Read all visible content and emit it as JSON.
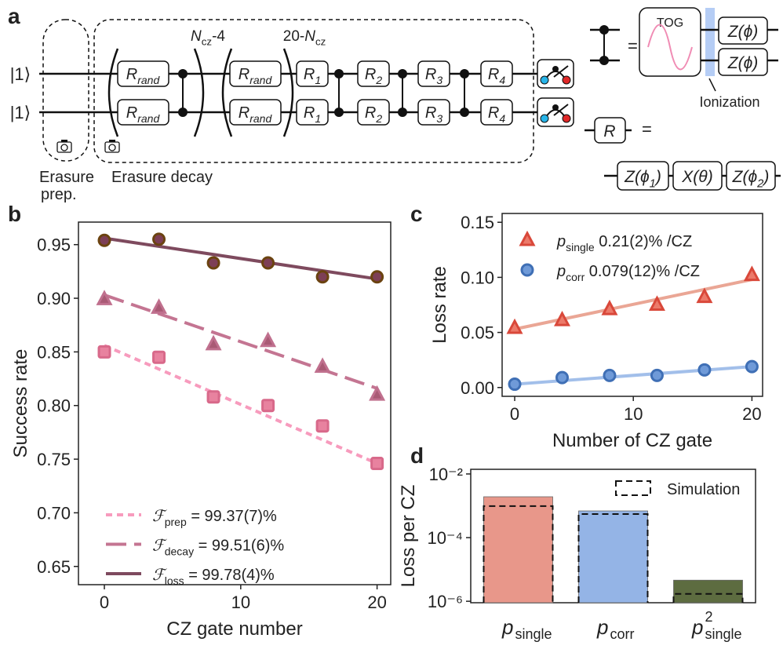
{
  "diagram": {
    "label": "a",
    "inputs": [
      "|1⟩",
      "|1⟩"
    ],
    "r_rand": {
      "base": "R",
      "sub": "rand"
    },
    "rep1": {
      "base": "N",
      "sub": "cz",
      "rest": "-4"
    },
    "rep2": {
      "pre": "20-",
      "base": "N",
      "sub": "cz"
    },
    "r_gates": [
      {
        "base": "R",
        "sub": "1"
      },
      {
        "base": "R",
        "sub": "2"
      },
      {
        "base": "R",
        "sub": "3"
      },
      {
        "base": "R",
        "sub": "4"
      }
    ],
    "equals": "=",
    "tog": "TOG",
    "z_phi": "Z(ϕ)",
    "ionization": "Ionization",
    "r": "R",
    "decomp": [
      {
        "base": "Z(ϕ",
        "sub": "1",
        "rest": ")"
      },
      {
        "base": "X(θ)"
      },
      {
        "base": "Z(ϕ",
        "sub": "2",
        "rest": ")"
      }
    ],
    "erasure_prep": [
      "Erasure",
      "prep."
    ],
    "erasure_decay": "Erasure decay"
  },
  "chart_data": [
    {
      "type": "scatter",
      "label": "b",
      "x_label": "CZ gate number",
      "y_label": "Success rate",
      "x": [
        0,
        4,
        8,
        12,
        16,
        20
      ],
      "xlim": [
        -1.9,
        21
      ],
      "xticks": [
        0,
        10,
        20
      ],
      "ylim": [
        0.633,
        0.971
      ],
      "yticks": [
        0.65,
        {
          "value": 0.7,
          "label": "0.70"
        },
        0.75,
        {
          "value": 0.8,
          "label": "0.80"
        },
        0.85,
        {
          "value": 0.9,
          "label": "0.90"
        },
        0.95
      ],
      "series": [
        {
          "symbol": "ℱ",
          "name": "prep",
          "label": " = 99.37(7)%",
          "marker": "square",
          "color": "#e8829f",
          "edge": "#d8698a",
          "fit_color": "#f79bbd",
          "dash": "8 6",
          "values": [
            0.85,
            0.845,
            0.808,
            0.8,
            0.781,
            0.746
          ],
          "fit_x": [
            0,
            20
          ],
          "fit_y": [
            0.856,
            0.746
          ]
        },
        {
          "symbol": "ℱ",
          "name": "decay",
          "label": " = 99.51(6)%",
          "marker": "triangle",
          "color": "#a95a75",
          "edge": "#c0708e",
          "fit_color": "#c47592",
          "dash": "26 10",
          "values": [
            0.899,
            0.891,
            0.857,
            0.86,
            0.836,
            0.81
          ],
          "fit_x": [
            0,
            20
          ],
          "fit_y": [
            0.903,
            0.816
          ]
        },
        {
          "symbol": "ℱ",
          "name": "loss",
          "label": " = 99.78(4)%",
          "marker": "circle",
          "color": "#7d3f56",
          "edge": "#6b4310",
          "fit_color": "#7e4a5e",
          "dash": "",
          "values": [
            0.954,
            0.955,
            0.933,
            0.933,
            0.92,
            0.92
          ],
          "fit_x": [
            0,
            20
          ],
          "fit_y": [
            0.956,
            0.918
          ]
        }
      ]
    },
    {
      "type": "scatter",
      "label": "c",
      "x_label": "Number of CZ gate",
      "y_label": "Loss rate",
      "x": [
        0,
        4,
        8,
        12,
        16,
        20
      ],
      "xlim": [
        -1.06,
        20.9
      ],
      "xticks": [
        0,
        10,
        20
      ],
      "ylim": [
        -0.008,
        0.158
      ],
      "yticks": [
        {
          "value": 0,
          "label": "0.00"
        },
        0.05,
        {
          "value": 0.1,
          "label": "0.10"
        },
        0.15
      ],
      "series": [
        {
          "symbol": "p",
          "name": "single",
          "label": " 0.21(2)% /CZ",
          "marker": "triangle",
          "color": "#ec7a6a",
          "edge": "#d9483a",
          "fit_color": "#eaa695",
          "dash": "",
          "values": [
            0.054,
            0.061,
            0.071,
            0.075,
            0.082,
            0.102
          ],
          "fit_x": [
            0,
            20
          ],
          "fit_y": [
            0.053,
            0.098
          ]
        },
        {
          "symbol": "p",
          "name": "corr",
          "label": " 0.079(12)% /CZ",
          "marker": "circle",
          "color": "#6f9ad8",
          "edge": "#3f6fb5",
          "fit_color": "#a2bfea",
          "dash": "",
          "values": [
            0.003,
            0.009,
            0.011,
            0.011,
            0.016,
            0.019
          ],
          "fit_x": [
            0,
            20
          ],
          "fit_y": [
            0.003,
            0.019
          ]
        }
      ]
    },
    {
      "type": "bar",
      "label": "d",
      "y_label": "Loss per CZ",
      "log_y": true,
      "categories": [
        {
          "base": "p",
          "sub": "single"
        },
        {
          "base": "p",
          "sub": "corr"
        },
        {
          "base": "p",
          "sup": "2",
          "sub": "single"
        }
      ],
      "values": [
        0.00192,
        0.00069,
        4.6e-06
      ],
      "colors": [
        "#e8978a",
        "#94b4e6",
        "#5d6c40"
      ],
      "simulation": {
        "name": "Simulation",
        "values": [
          0.00098,
          0.00055,
          1.7e-06
        ]
      },
      "ylim": [
        9e-07,
        0.014
      ],
      "yticks": [
        {
          "value": 0.01,
          "label": "10⁻²"
        },
        {
          "value": 0.0001,
          "label": "10⁻⁴"
        },
        {
          "value": 1e-06,
          "label": "10⁻⁶"
        }
      ]
    }
  ]
}
